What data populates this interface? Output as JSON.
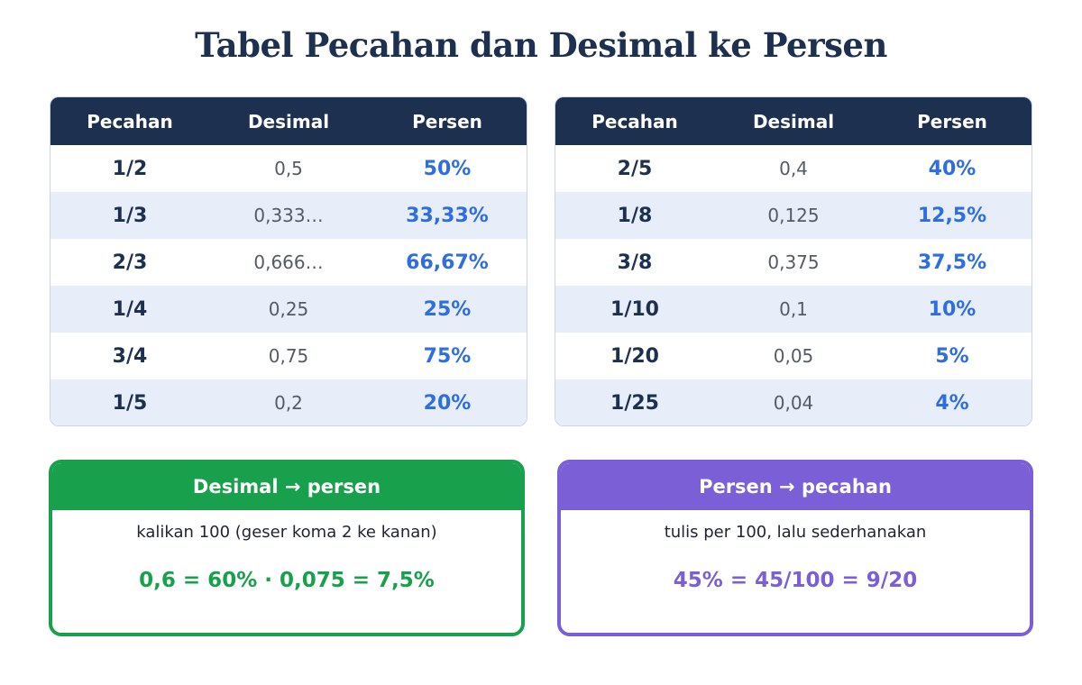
{
  "title": "Tabel Pecahan dan Desimal ke Persen",
  "headers": [
    "Pecahan",
    "Desimal",
    "Persen"
  ],
  "tables": [
    {
      "rows": [
        {
          "fraction": "1/2",
          "decimal": "0,5",
          "percent": "50%"
        },
        {
          "fraction": "1/3",
          "decimal": "0,333…",
          "percent": "33,33%"
        },
        {
          "fraction": "2/3",
          "decimal": "0,666…",
          "percent": "66,67%"
        },
        {
          "fraction": "1/4",
          "decimal": "0,25",
          "percent": "25%"
        },
        {
          "fraction": "3/4",
          "decimal": "0,75",
          "percent": "75%"
        },
        {
          "fraction": "1/5",
          "decimal": "0,2",
          "percent": "20%"
        }
      ]
    },
    {
      "rows": [
        {
          "fraction": "2/5",
          "decimal": "0,4",
          "percent": "40%"
        },
        {
          "fraction": "1/8",
          "decimal": "0,125",
          "percent": "12,5%"
        },
        {
          "fraction": "3/8",
          "decimal": "0,375",
          "percent": "37,5%"
        },
        {
          "fraction": "1/10",
          "decimal": "0,1",
          "percent": "10%"
        },
        {
          "fraction": "1/20",
          "decimal": "0,05",
          "percent": "5%"
        },
        {
          "fraction": "1/25",
          "decimal": "0,04",
          "percent": "4%"
        }
      ]
    }
  ],
  "rules": [
    {
      "heading": "Desimal → persen",
      "description": "kalikan 100 (geser koma 2 ke kanan)",
      "example": "0,6 = 60% · 0,075 = 7,5%"
    },
    {
      "heading": "Persen → pecahan",
      "description": "tulis per 100, lalu sederhanakan",
      "example": "45% = 45/100 = 9/20"
    }
  ],
  "colors": {
    "navy": "#1d3050",
    "percent_blue": "#2f6ee0",
    "green": "#18a04c",
    "purple": "#7b5fd6",
    "stripe": "#e7eefa"
  }
}
